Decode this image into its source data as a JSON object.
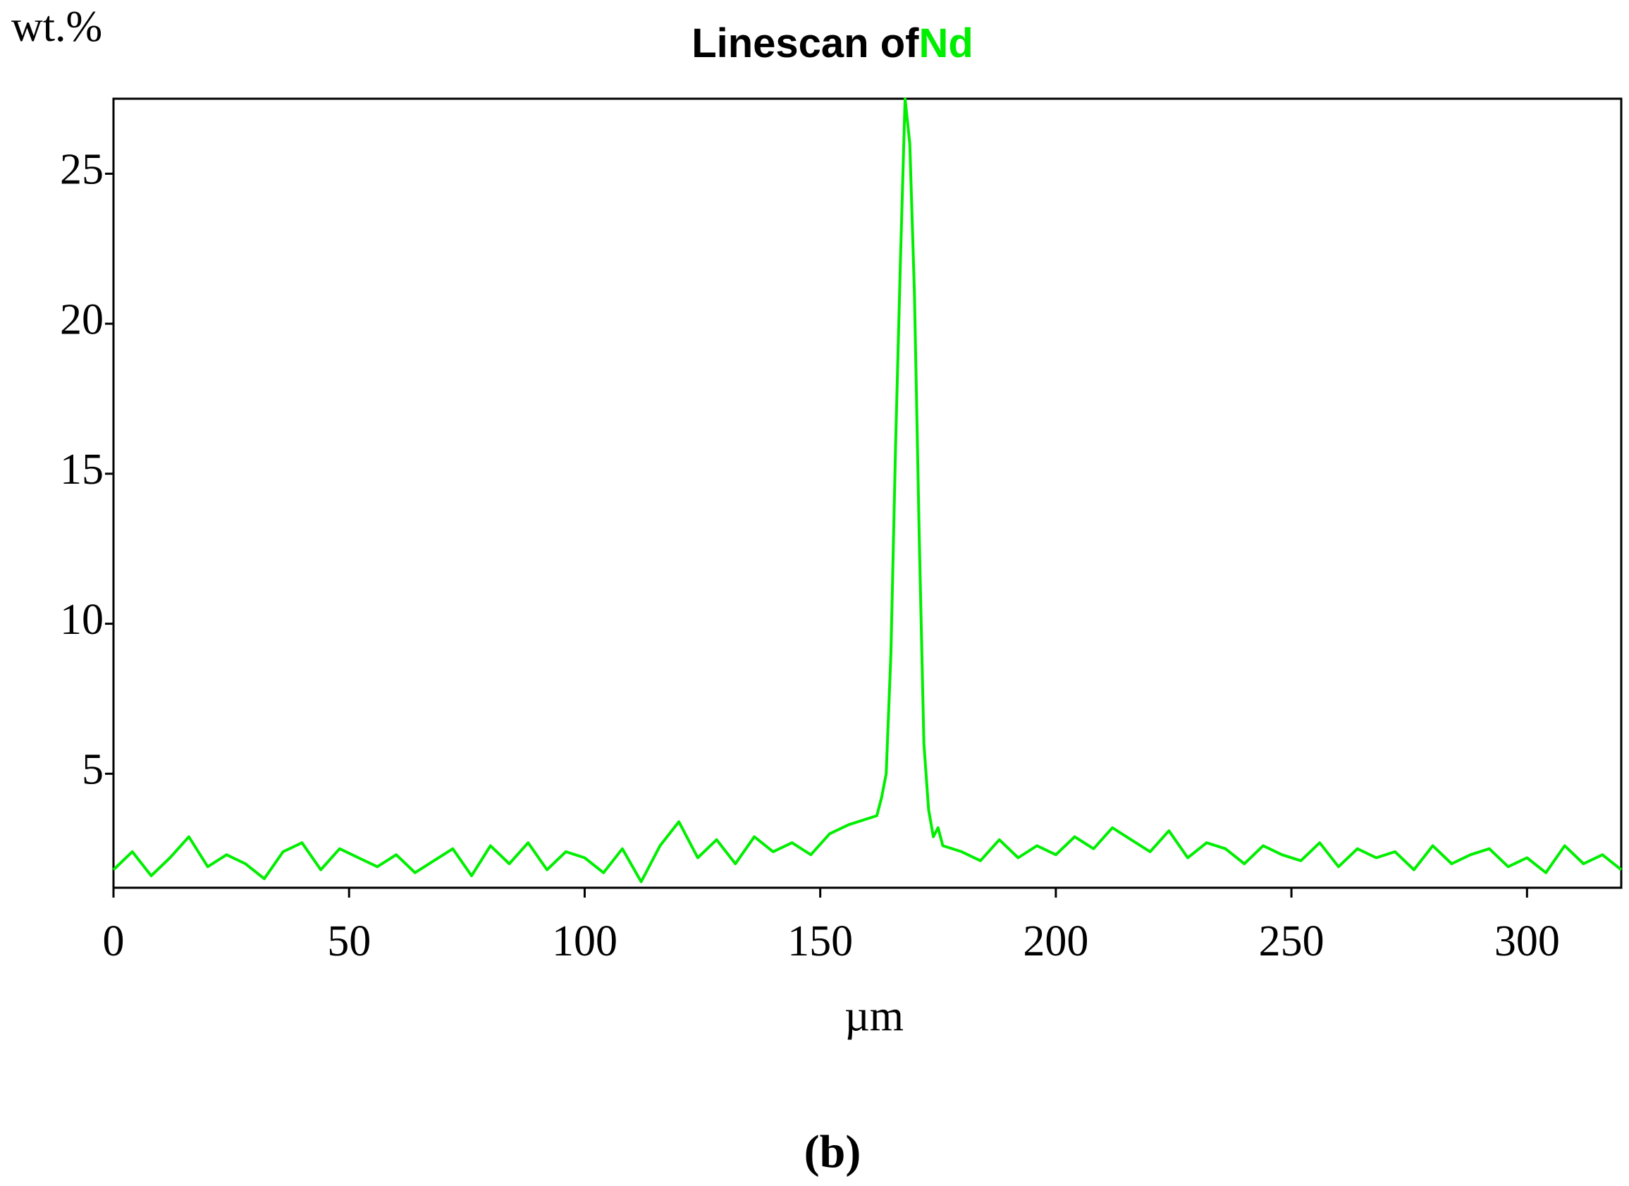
{
  "chart_data": {
    "type": "line",
    "title": "Linescan of",
    "y_label": "wt.%",
    "x_label": "µm",
    "caption": "(b)",
    "x": [
      0,
      4,
      8,
      12,
      16,
      20,
      24,
      28,
      32,
      36,
      40,
      44,
      48,
      52,
      56,
      60,
      64,
      68,
      72,
      76,
      80,
      84,
      88,
      92,
      96,
      100,
      104,
      108,
      112,
      116,
      120,
      124,
      128,
      132,
      136,
      140,
      144,
      148,
      152,
      156,
      160,
      162,
      163,
      164,
      165,
      166,
      167,
      168,
      169,
      170,
      171,
      172,
      173,
      174,
      175,
      176,
      180,
      184,
      188,
      192,
      196,
      200,
      204,
      208,
      212,
      216,
      220,
      224,
      228,
      232,
      236,
      240,
      244,
      248,
      252,
      256,
      260,
      264,
      268,
      272,
      276,
      280,
      284,
      288,
      292,
      296,
      300,
      304,
      308,
      312,
      316,
      320
    ],
    "series": [
      {
        "name": "Nd",
        "color": "#00ee00",
        "values": [
          1.8,
          2.4,
          1.6,
          2.2,
          2.9,
          1.9,
          2.3,
          2.0,
          1.5,
          2.4,
          2.7,
          1.8,
          2.5,
          2.2,
          1.9,
          2.3,
          1.7,
          2.1,
          2.5,
          1.6,
          2.6,
          2.0,
          2.7,
          1.8,
          2.4,
          2.2,
          1.7,
          2.5,
          1.4,
          2.6,
          3.4,
          2.2,
          2.8,
          2.0,
          2.9,
          2.4,
          2.7,
          2.3,
          3.0,
          3.3,
          3.5,
          3.6,
          4.2,
          5.0,
          9.0,
          16.0,
          22.0,
          27.5,
          26.0,
          21.0,
          13.0,
          6.0,
          3.8,
          2.9,
          3.2,
          2.6,
          2.4,
          2.1,
          2.8,
          2.2,
          2.6,
          2.3,
          2.9,
          2.5,
          3.2,
          2.8,
          2.4,
          3.1,
          2.2,
          2.7,
          2.5,
          2.0,
          2.6,
          2.3,
          2.1,
          2.7,
          1.9,
          2.5,
          2.2,
          2.4,
          1.8,
          2.6,
          2.0,
          2.3,
          2.5,
          1.9,
          2.2,
          1.7,
          2.6,
          2.0,
          2.3,
          1.8
        ]
      }
    ],
    "xlim": [
      0,
      320
    ],
    "ylim": [
      1.2,
      27.5
    ],
    "xticks": [
      0,
      50,
      100,
      150,
      200,
      250,
      300
    ],
    "yticks": [
      5,
      10,
      15,
      20,
      25
    ],
    "grid": false
  }
}
